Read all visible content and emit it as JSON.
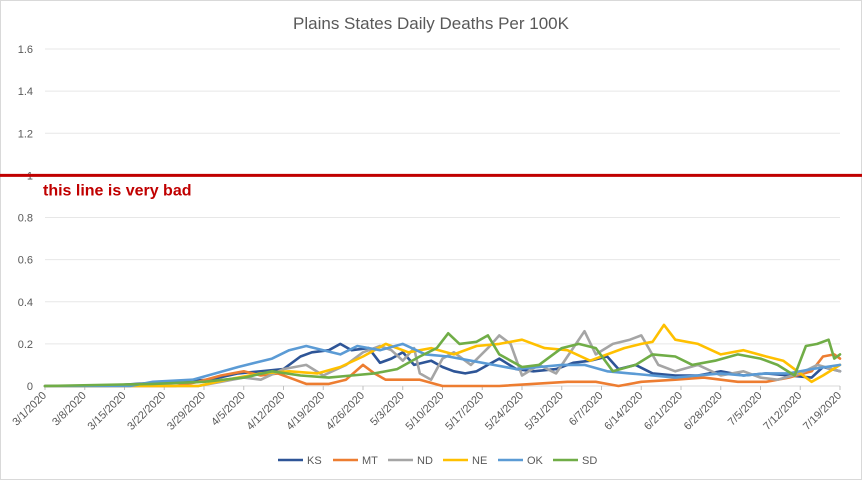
{
  "chart_data": {
    "type": "line",
    "title": "Plains States Daily Deaths Per 100K",
    "xlabel": "",
    "ylabel": "",
    "ylim": [
      0,
      1.7
    ],
    "y_ticks": [
      "0",
      "0.2",
      "0.4",
      "0.6",
      "0.8",
      "1",
      "1.2",
      "1.4",
      "1.6"
    ],
    "x_tick_labels": [
      "3/1/2020",
      "3/8/2020",
      "3/15/2020",
      "3/22/2020",
      "3/29/2020",
      "4/5/2020",
      "4/12/2020",
      "4/19/2020",
      "4/26/2020",
      "5/3/2020",
      "5/10/2020",
      "5/17/2020",
      "5/24/2020",
      "5/31/2020",
      "6/7/2020",
      "6/14/2020",
      "6/21/2020",
      "6/28/2020",
      "7/5/2020",
      "7/12/2020",
      "7/19/2020"
    ],
    "x_start": "2020-03-01",
    "x_end": "2020-07-19",
    "grid": true,
    "legend_position": "bottom",
    "reference_line": {
      "y": 1.0,
      "color": "#c00000",
      "label": "this line is very bad"
    },
    "series": [
      {
        "name": "KS",
        "color": "#2e5597",
        "points": [
          [
            "2020-03-01",
            0
          ],
          [
            "2020-03-12",
            0
          ],
          [
            "2020-03-17",
            0.01
          ],
          [
            "2020-03-24",
            0.02
          ],
          [
            "2020-03-30",
            0.03
          ],
          [
            "2020-04-04",
            0.06
          ],
          [
            "2020-04-08",
            0.07
          ],
          [
            "2020-04-12",
            0.08
          ],
          [
            "2020-04-15",
            0.14
          ],
          [
            "2020-04-17",
            0.16
          ],
          [
            "2020-04-20",
            0.17
          ],
          [
            "2020-04-22",
            0.2
          ],
          [
            "2020-04-24",
            0.17
          ],
          [
            "2020-04-27",
            0.18
          ],
          [
            "2020-04-29",
            0.11
          ],
          [
            "2020-05-01",
            0.13
          ],
          [
            "2020-05-03",
            0.16
          ],
          [
            "2020-05-05",
            0.1
          ],
          [
            "2020-05-08",
            0.12
          ],
          [
            "2020-05-10",
            0.09
          ],
          [
            "2020-05-12",
            0.07
          ],
          [
            "2020-05-14",
            0.06
          ],
          [
            "2020-05-16",
            0.07
          ],
          [
            "2020-05-18",
            0.1
          ],
          [
            "2020-05-20",
            0.13
          ],
          [
            "2020-05-23",
            0.08
          ],
          [
            "2020-05-26",
            0.07
          ],
          [
            "2020-05-30",
            0.08
          ],
          [
            "2020-06-02",
            0.11
          ],
          [
            "2020-06-05",
            0.12
          ],
          [
            "2020-06-08",
            0.14
          ],
          [
            "2020-06-10",
            0.08
          ],
          [
            "2020-06-13",
            0.1
          ],
          [
            "2020-06-16",
            0.06
          ],
          [
            "2020-06-20",
            0.05
          ],
          [
            "2020-06-24",
            0.05
          ],
          [
            "2020-06-28",
            0.07
          ],
          [
            "2020-07-02",
            0.05
          ],
          [
            "2020-07-06",
            0.06
          ],
          [
            "2020-07-10",
            0.05
          ],
          [
            "2020-07-14",
            0.04
          ],
          [
            "2020-07-16",
            0.09
          ],
          [
            "2020-07-19",
            0.07
          ]
        ]
      },
      {
        "name": "MT",
        "color": "#ed7d31",
        "points": [
          [
            "2020-03-01",
            0
          ],
          [
            "2020-03-24",
            0
          ],
          [
            "2020-03-28",
            0.02
          ],
          [
            "2020-04-01",
            0.05
          ],
          [
            "2020-04-05",
            0.07
          ],
          [
            "2020-04-08",
            0.05
          ],
          [
            "2020-04-11",
            0.06
          ],
          [
            "2020-04-14",
            0.03
          ],
          [
            "2020-04-16",
            0.01
          ],
          [
            "2020-04-20",
            0.01
          ],
          [
            "2020-04-23",
            0.03
          ],
          [
            "2020-04-26",
            0.1
          ],
          [
            "2020-04-28",
            0.06
          ],
          [
            "2020-04-30",
            0.03
          ],
          [
            "2020-05-06",
            0.03
          ],
          [
            "2020-05-10",
            0
          ],
          [
            "2020-05-20",
            0
          ],
          [
            "2020-06-01",
            0.02
          ],
          [
            "2020-06-06",
            0.02
          ],
          [
            "2020-06-10",
            0
          ],
          [
            "2020-06-14",
            0.02
          ],
          [
            "2020-06-20",
            0.03
          ],
          [
            "2020-06-25",
            0.04
          ],
          [
            "2020-07-01",
            0.02
          ],
          [
            "2020-07-06",
            0.02
          ],
          [
            "2020-07-10",
            0.04
          ],
          [
            "2020-07-14",
            0.07
          ],
          [
            "2020-07-16",
            0.14
          ],
          [
            "2020-07-18",
            0.15
          ],
          [
            "2020-07-19",
            0.13
          ]
        ]
      },
      {
        "name": "ND",
        "color": "#a5a5a5",
        "points": [
          [
            "2020-03-01",
            0
          ],
          [
            "2020-03-28",
            0
          ],
          [
            "2020-04-01",
            0.02
          ],
          [
            "2020-04-05",
            0.04
          ],
          [
            "2020-04-08",
            0.03
          ],
          [
            "2020-04-12",
            0.08
          ],
          [
            "2020-04-16",
            0.1
          ],
          [
            "2020-04-19",
            0.05
          ],
          [
            "2020-04-23",
            0.1
          ],
          [
            "2020-04-26",
            0.16
          ],
          [
            "2020-04-29",
            0.19
          ],
          [
            "2020-05-01",
            0.17
          ],
          [
            "2020-05-03",
            0.12
          ],
          [
            "2020-05-05",
            0.18
          ],
          [
            "2020-05-06",
            0.06
          ],
          [
            "2020-05-08",
            0.03
          ],
          [
            "2020-05-10",
            0.13
          ],
          [
            "2020-05-12",
            0.16
          ],
          [
            "2020-05-15",
            0.1
          ],
          [
            "2020-05-18",
            0.18
          ],
          [
            "2020-05-20",
            0.24
          ],
          [
            "2020-05-22",
            0.2
          ],
          [
            "2020-05-24",
            0.05
          ],
          [
            "2020-05-27",
            0.1
          ],
          [
            "2020-05-30",
            0.06
          ],
          [
            "2020-06-02",
            0.18
          ],
          [
            "2020-06-04",
            0.26
          ],
          [
            "2020-06-06",
            0.15
          ],
          [
            "2020-06-09",
            0.2
          ],
          [
            "2020-06-12",
            0.22
          ],
          [
            "2020-06-14",
            0.24
          ],
          [
            "2020-06-17",
            0.1
          ],
          [
            "2020-06-20",
            0.07
          ],
          [
            "2020-06-24",
            0.1
          ],
          [
            "2020-06-28",
            0.05
          ],
          [
            "2020-07-02",
            0.07
          ],
          [
            "2020-07-05",
            0.04
          ],
          [
            "2020-07-08",
            0.03
          ],
          [
            "2020-07-12",
            0.06
          ],
          [
            "2020-07-15",
            0.1
          ],
          [
            "2020-07-19",
            0.07
          ]
        ]
      },
      {
        "name": "NE",
        "color": "#ffc000",
        "points": [
          [
            "2020-03-01",
            0
          ],
          [
            "2020-03-28",
            0
          ],
          [
            "2020-04-02",
            0.03
          ],
          [
            "2020-04-08",
            0.06
          ],
          [
            "2020-04-13",
            0.07
          ],
          [
            "2020-04-18",
            0.06
          ],
          [
            "2020-04-22",
            0.09
          ],
          [
            "2020-04-26",
            0.14
          ],
          [
            "2020-04-30",
            0.2
          ],
          [
            "2020-05-04",
            0.16
          ],
          [
            "2020-05-08",
            0.18
          ],
          [
            "2020-05-12",
            0.15
          ],
          [
            "2020-05-16",
            0.19
          ],
          [
            "2020-05-20",
            0.2
          ],
          [
            "2020-05-24",
            0.22
          ],
          [
            "2020-05-28",
            0.18
          ],
          [
            "2020-06-01",
            0.17
          ],
          [
            "2020-06-05",
            0.12
          ],
          [
            "2020-06-08",
            0.15
          ],
          [
            "2020-06-11",
            0.18
          ],
          [
            "2020-06-14",
            0.2
          ],
          [
            "2020-06-16",
            0.21
          ],
          [
            "2020-06-18",
            0.29
          ],
          [
            "2020-06-20",
            0.22
          ],
          [
            "2020-06-24",
            0.2
          ],
          [
            "2020-06-28",
            0.15
          ],
          [
            "2020-07-02",
            0.17
          ],
          [
            "2020-07-06",
            0.14
          ],
          [
            "2020-07-09",
            0.12
          ],
          [
            "2020-07-12",
            0.06
          ],
          [
            "2020-07-14",
            0.02
          ],
          [
            "2020-07-16",
            0.05
          ],
          [
            "2020-07-19",
            0.1
          ]
        ]
      },
      {
        "name": "OK",
        "color": "#5b9bd5",
        "points": [
          [
            "2020-03-01",
            0
          ],
          [
            "2020-03-16",
            0
          ],
          [
            "2020-03-20",
            0.02
          ],
          [
            "2020-03-27",
            0.03
          ],
          [
            "2020-03-31",
            0.06
          ],
          [
            "2020-04-04",
            0.09
          ],
          [
            "2020-04-07",
            0.11
          ],
          [
            "2020-04-10",
            0.13
          ],
          [
            "2020-04-13",
            0.17
          ],
          [
            "2020-04-16",
            0.19
          ],
          [
            "2020-04-19",
            0.17
          ],
          [
            "2020-04-22",
            0.15
          ],
          [
            "2020-04-25",
            0.19
          ],
          [
            "2020-04-29",
            0.17
          ],
          [
            "2020-05-03",
            0.2
          ],
          [
            "2020-05-07",
            0.15
          ],
          [
            "2020-05-11",
            0.14
          ],
          [
            "2020-05-15",
            0.12
          ],
          [
            "2020-05-19",
            0.1
          ],
          [
            "2020-05-23",
            0.08
          ],
          [
            "2020-05-27",
            0.09
          ],
          [
            "2020-05-31",
            0.1
          ],
          [
            "2020-06-04",
            0.1
          ],
          [
            "2020-06-08",
            0.07
          ],
          [
            "2020-06-12",
            0.06
          ],
          [
            "2020-06-16",
            0.05
          ],
          [
            "2020-06-20",
            0.04
          ],
          [
            "2020-06-24",
            0.05
          ],
          [
            "2020-06-28",
            0.06
          ],
          [
            "2020-07-02",
            0.05
          ],
          [
            "2020-07-06",
            0.06
          ],
          [
            "2020-07-10",
            0.06
          ],
          [
            "2020-07-14",
            0.08
          ],
          [
            "2020-07-19",
            0.1
          ]
        ]
      },
      {
        "name": "SD",
        "color": "#70ad47",
        "points": [
          [
            "2020-03-01",
            0
          ],
          [
            "2020-03-20",
            0.01
          ],
          [
            "2020-03-29",
            0.02
          ],
          [
            "2020-04-05",
            0.04
          ],
          [
            "2020-04-10",
            0.07
          ],
          [
            "2020-04-15",
            0.05
          ],
          [
            "2020-04-20",
            0.04
          ],
          [
            "2020-04-24",
            0.05
          ],
          [
            "2020-04-28",
            0.06
          ],
          [
            "2020-05-02",
            0.08
          ],
          [
            "2020-05-06",
            0.14
          ],
          [
            "2020-05-09",
            0.18
          ],
          [
            "2020-05-11",
            0.25
          ],
          [
            "2020-05-13",
            0.2
          ],
          [
            "2020-05-16",
            0.21
          ],
          [
            "2020-05-18",
            0.24
          ],
          [
            "2020-05-20",
            0.15
          ],
          [
            "2020-05-24",
            0.09
          ],
          [
            "2020-05-27",
            0.1
          ],
          [
            "2020-05-31",
            0.18
          ],
          [
            "2020-06-03",
            0.2
          ],
          [
            "2020-06-06",
            0.18
          ],
          [
            "2020-06-09",
            0.07
          ],
          [
            "2020-06-13",
            0.1
          ],
          [
            "2020-06-16",
            0.15
          ],
          [
            "2020-06-20",
            0.14
          ],
          [
            "2020-06-23",
            0.1
          ],
          [
            "2020-06-27",
            0.12
          ],
          [
            "2020-07-01",
            0.15
          ],
          [
            "2020-07-05",
            0.13
          ],
          [
            "2020-07-08",
            0.1
          ],
          [
            "2020-07-11",
            0.05
          ],
          [
            "2020-07-13",
            0.19
          ],
          [
            "2020-07-15",
            0.2
          ],
          [
            "2020-07-17",
            0.22
          ],
          [
            "2020-07-18",
            0.13
          ],
          [
            "2020-07-19",
            0.15
          ]
        ]
      }
    ]
  }
}
